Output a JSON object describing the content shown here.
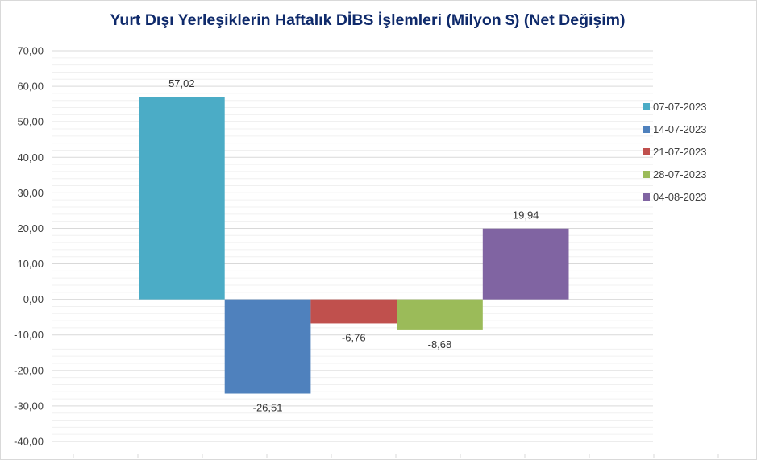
{
  "chart_data": {
    "type": "bar",
    "title": "Yurt Dışı Yerleşiklerin Haftalık DİBS İşlemleri (Milyon $) (Net Değişim)",
    "xlabel": "",
    "ylabel": "",
    "ylim": [
      -40,
      70
    ],
    "ytick_step": 10,
    "ytick_labels": [
      "70,00",
      "60,00",
      "50,00",
      "40,00",
      "30,00",
      "20,00",
      "10,00",
      "0,00",
      "-10,00",
      "-20,00",
      "-30,00",
      "-40,00"
    ],
    "grid": true,
    "legend_position": "right",
    "series": [
      {
        "name": "07-07-2023",
        "value": 57.02,
        "label": "57,02",
        "color": "#4bacc6"
      },
      {
        "name": "14-07-2023",
        "value": -26.51,
        "label": "-26,51",
        "color": "#4f81bd"
      },
      {
        "name": "21-07-2023",
        "value": -6.76,
        "label": "-6,76",
        "color": "#c0504d"
      },
      {
        "name": "28-07-2023",
        "value": -8.68,
        "label": "-8,68",
        "color": "#9bbb59"
      },
      {
        "name": "04-08-2023",
        "value": 19.94,
        "label": "19,94",
        "color": "#8064a2"
      }
    ]
  }
}
